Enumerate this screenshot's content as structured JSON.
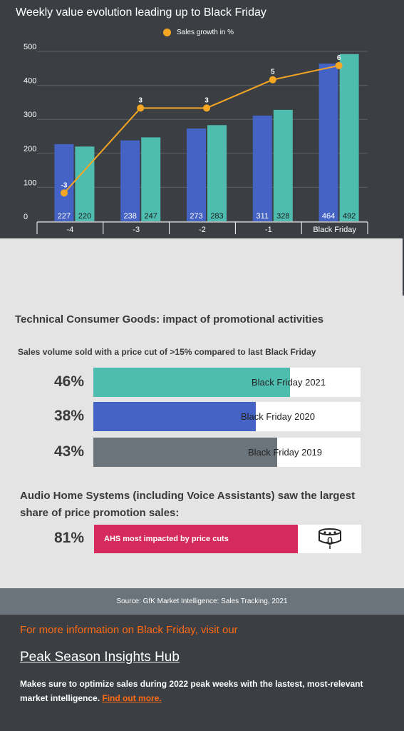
{
  "chart_data": {
    "type": "bar",
    "title": "Weekly value evolution leading up to Black Friday",
    "categories": [
      "-4",
      "-3",
      "-2",
      "-1",
      "Black Friday"
    ],
    "series": [
      {
        "values": [
          227,
          238,
          273,
          311,
          464
        ],
        "color": "#4463c4"
      },
      {
        "values": [
          220,
          247,
          283,
          328,
          492
        ],
        "color": "#4fbcb0"
      }
    ],
    "line_series": {
      "name": "Sales growth in %",
      "values": [
        -3,
        3,
        3,
        5,
        6
      ],
      "color": "#f5a623",
      "ylim": [
        -5,
        7
      ]
    },
    "ylim": [
      0,
      500
    ],
    "yticks": [
      0,
      100,
      200,
      300,
      400,
      500
    ],
    "grid": true,
    "legend": "top-center"
  },
  "promo": {
    "title": "Technical Consumer Goods: impact of promotional activities",
    "subtitle": "Sales volume sold with a price cut of >15% compared to last Black Friday",
    "rows": [
      {
        "pct": "46%",
        "value": 46,
        "label": "Black Friday 2021",
        "color": "#4fbcb0"
      },
      {
        "pct": "38%",
        "value": 38,
        "label": "Black Friday 2020",
        "color": "#4463c4"
      },
      {
        "pct": "43%",
        "value": 43,
        "label": "Black Friday 2019",
        "color": "#6b747b"
      }
    ]
  },
  "ahs": {
    "title": "Audio Home Systems (including Voice Assistants) saw the largest share of price promotion sales:",
    "pct": "81%",
    "bar_label": "AHS most impacted by price cuts",
    "icon": "smart-speaker-icon"
  },
  "source": "Source: GfK Market Intelligence: Sales Tracking, 2021",
  "footer": {
    "cta": "For more information on Black Friday, visit our",
    "hub": "Peak Season Insights Hub",
    "text": "Makes sure to optimize sales during 2022 peak weeks with the lastest, most-relevant market intelligence.",
    "link": "Find out more."
  }
}
